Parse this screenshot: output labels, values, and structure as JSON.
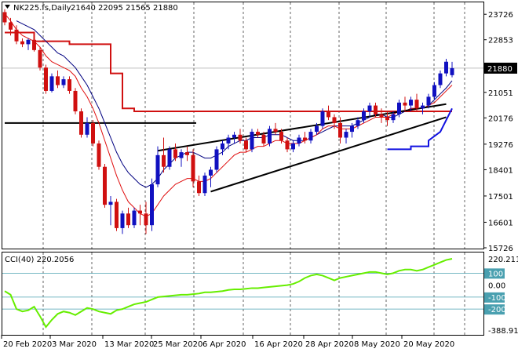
{
  "header": {
    "symbol": "NK225.fs,Daily",
    "ohlc": "21640 22095 21565 21880"
  },
  "indicator": {
    "label": "CCI(40) 220.2056"
  },
  "colors": {
    "bull": "#1010c0",
    "bear": "#d01010",
    "ma_fast": "#e01010",
    "ma_slow": "#000080",
    "stop_line": "#d01010",
    "cci_line": "#66ee00",
    "trendline": "#000000",
    "cci_levels": "#4aa0b0",
    "price_tag_bg": "#000000"
  },
  "chart_data": [
    {
      "type": "candlestick",
      "yticks": [
        15726,
        16601,
        17501,
        18401,
        19276,
        20176,
        21051,
        21880,
        22853,
        23726
      ],
      "price_tag": "21880",
      "ylim": [
        15726,
        24000
      ],
      "xlabels": [
        "20 Feb 2020",
        "3 Mar 2020",
        "13 Mar 2020",
        "25 Mar 2020",
        "6 Apr 2020",
        "16 Apr 2020",
        "28 Apr 2020",
        "8 May 2020",
        "20 May 2020"
      ],
      "candles": [
        [
          23800,
          23900,
          23350,
          23450
        ],
        [
          23450,
          23600,
          23000,
          23200
        ],
        [
          23200,
          23350,
          22700,
          22800
        ],
        [
          22800,
          22900,
          22600,
          22700
        ],
        [
          22700,
          22900,
          22500,
          22850
        ],
        [
          22850,
          22900,
          22450,
          22500
        ],
        [
          22500,
          22600,
          21800,
          21900
        ],
        [
          21900,
          22000,
          21000,
          21100
        ],
        [
          21100,
          21700,
          21050,
          21600
        ],
        [
          21600,
          21800,
          21200,
          21300
        ],
        [
          21300,
          21600,
          21200,
          21500
        ],
        [
          21500,
          21600,
          21000,
          21100
        ],
        [
          21100,
          21200,
          20300,
          20400
        ],
        [
          20400,
          20500,
          19500,
          19600
        ],
        [
          19600,
          20200,
          19500,
          20000
        ],
        [
          20000,
          20100,
          19200,
          19300
        ],
        [
          19300,
          19400,
          18400,
          18500
        ],
        [
          18500,
          18600,
          17100,
          17200
        ],
        [
          17200,
          17500,
          16500,
          17300
        ],
        [
          17300,
          17400,
          16300,
          16400
        ],
        [
          16400,
          17000,
          16200,
          16900
        ],
        [
          16900,
          17100,
          16400,
          16500
        ],
        [
          16500,
          17100,
          16400,
          17000
        ],
        [
          17000,
          17200,
          16500,
          16900
        ],
        [
          16900,
          17300,
          16200,
          16500
        ],
        [
          16500,
          18100,
          16300,
          17900
        ],
        [
          17900,
          19200,
          17800,
          18900
        ],
        [
          18900,
          19500,
          18300,
          18500
        ],
        [
          18500,
          19200,
          18400,
          19100
        ],
        [
          19100,
          19300,
          18700,
          18800
        ],
        [
          18800,
          19100,
          18500,
          19000
        ],
        [
          19000,
          19200,
          18700,
          18900
        ],
        [
          18900,
          19100,
          17800,
          18000
        ],
        [
          18000,
          18200,
          17500,
          17600
        ],
        [
          17600,
          18300,
          17500,
          18200
        ],
        [
          18200,
          18500,
          17800,
          18400
        ],
        [
          18400,
          19200,
          18300,
          19100
        ],
        [
          19100,
          19400,
          18900,
          19300
        ],
        [
          19300,
          19600,
          19100,
          19500
        ],
        [
          19500,
          19700,
          19300,
          19600
        ],
        [
          19600,
          19800,
          19300,
          19400
        ],
        [
          19400,
          19500,
          19000,
          19100
        ],
        [
          19100,
          19800,
          19000,
          19700
        ],
        [
          19700,
          19800,
          19500,
          19600
        ],
        [
          19600,
          19700,
          19200,
          19300
        ],
        [
          19300,
          19900,
          19200,
          19800
        ],
        [
          19800,
          20000,
          19600,
          19700
        ],
        [
          19700,
          19800,
          19300,
          19400
        ],
        [
          19400,
          19500,
          19000,
          19100
        ],
        [
          19100,
          19400,
          19000,
          19300
        ],
        [
          19300,
          19600,
          19200,
          19500
        ],
        [
          19500,
          19700,
          19300,
          19400
        ],
        [
          19400,
          19800,
          19300,
          19700
        ],
        [
          19700,
          20000,
          19600,
          19900
        ],
        [
          19900,
          20500,
          19800,
          20400
        ],
        [
          20400,
          20600,
          20100,
          20200
        ],
        [
          20200,
          20300,
          19800,
          20000
        ],
        [
          20000,
          20200,
          19300,
          19500
        ],
        [
          19500,
          19800,
          19300,
          19700
        ],
        [
          19700,
          20000,
          19500,
          19900
        ],
        [
          19900,
          20200,
          19800,
          20100
        ],
        [
          20100,
          20500,
          20000,
          20400
        ],
        [
          20400,
          20700,
          20200,
          20600
        ],
        [
          20600,
          20700,
          20200,
          20300
        ],
        [
          20300,
          20500,
          20000,
          20200
        ],
        [
          20200,
          20400,
          19900,
          20100
        ],
        [
          20100,
          20400,
          20000,
          20300
        ],
        [
          20300,
          20800,
          20200,
          20700
        ],
        [
          20700,
          20900,
          20400,
          20600
        ],
        [
          20600,
          20900,
          20400,
          20800
        ],
        [
          20800,
          21000,
          20400,
          20500
        ],
        [
          20500,
          20700,
          20300,
          20600
        ],
        [
          20600,
          21000,
          20500,
          20900
        ],
        [
          20900,
          21400,
          20800,
          21300
        ],
        [
          21300,
          21800,
          21200,
          21700
        ],
        [
          21700,
          22200,
          21600,
          22100
        ],
        [
          21640,
          22095,
          21565,
          21880
        ]
      ],
      "overlays": {
        "ma_fast": [
          23750,
          23500,
          23200,
          23000,
          22900,
          22800,
          22600,
          22300,
          22100,
          22000,
          21900,
          21800,
          21600,
          21200,
          20900,
          20500,
          20000,
          19400,
          18800,
          18200,
          17700,
          17300,
          17100,
          16900,
          16800,
          16900,
          17200,
          17500,
          17700,
          17900,
          18000,
          18100,
          18100,
          18000,
          18000,
          18100,
          18300,
          18500,
          18700,
          18900,
          19000,
          19000,
          19100,
          19200,
          19200,
          19300,
          19400,
          19400,
          19300,
          19300,
          19300,
          19400,
          19500,
          19600,
          19800,
          19900,
          19900,
          19800,
          19800,
          19800,
          19900,
          20000,
          20100,
          20200,
          20200,
          20200,
          20300,
          20400,
          20400,
          20500,
          20500,
          20500,
          20600,
          20700,
          20900,
          21100,
          21300
        ],
        "ma_slow": [
          null,
          null,
          23500,
          23400,
          23300,
          23200,
          23000,
          22800,
          22600,
          22400,
          22300,
          22100,
          21900,
          21600,
          21300,
          20900,
          20500,
          20000,
          19500,
          19000,
          18600,
          18300,
          18100,
          17900,
          17800,
          17900,
          18100,
          18400,
          18600,
          18800,
          18900,
          19000,
          19000,
          18900,
          18800,
          18800,
          18900,
          19000,
          19200,
          19300,
          19400,
          19400,
          19500,
          19500,
          19500,
          19600,
          19600,
          19600,
          19500,
          19400,
          19400,
          19400,
          19500,
          19600,
          19700,
          19800,
          19900,
          19900,
          19900,
          19900,
          20000,
          20100,
          20200,
          20300,
          20300,
          20200,
          20200,
          20300,
          20400,
          20500,
          20500,
          20500,
          20600,
          20800,
          21000,
          21200,
          21450
        ],
        "stop_line": [
          [
            0,
            23100
          ],
          [
            5,
            23100
          ],
          [
            5,
            22800
          ],
          [
            11,
            22800
          ],
          [
            11,
            22700
          ],
          [
            18,
            22700
          ],
          [
            18,
            21700
          ],
          [
            20,
            21700
          ],
          [
            20,
            20500
          ],
          [
            22,
            20500
          ],
          [
            22,
            20400
          ],
          [
            40,
            20400
          ],
          [
            76,
            20400
          ]
        ],
        "stop_line_2": [
          [
            65,
            19100
          ],
          [
            69,
            19100
          ],
          [
            69,
            19200
          ],
          [
            72,
            19200
          ],
          [
            72,
            19400
          ],
          [
            74,
            19700
          ],
          [
            76,
            20500
          ]
        ],
        "support_line": [
          0,
          20000,
          38,
          20000
        ],
        "trend_upper": [
          26,
          19050,
          75,
          20650
        ],
        "trend_lower": [
          35,
          17650,
          75,
          20200
        ]
      }
    },
    {
      "type": "line",
      "name": "CCI(40)",
      "yticks_labels": [
        "220.2115",
        "100",
        "0.00",
        "-100",
        "-200",
        "-388.918"
      ],
      "levels": [
        100,
        -100,
        -200
      ],
      "ylim": [
        -388.918,
        220.2115
      ],
      "values": [
        -50,
        -80,
        -200,
        -220,
        -210,
        -180,
        -260,
        -350,
        -290,
        -240,
        -220,
        -230,
        -250,
        -220,
        -190,
        -200,
        -220,
        -230,
        -240,
        -210,
        -200,
        -180,
        -160,
        -150,
        -140,
        -120,
        -100,
        -95,
        -90,
        -85,
        -80,
        -80,
        -75,
        -70,
        -60,
        -60,
        -55,
        -50,
        -40,
        -35,
        -35,
        -30,
        -25,
        -25,
        -20,
        -15,
        -10,
        -5,
        0,
        10,
        30,
        60,
        80,
        90,
        80,
        60,
        40,
        60,
        70,
        80,
        90,
        100,
        110,
        110,
        100,
        90,
        100,
        120,
        130,
        130,
        120,
        130,
        150,
        170,
        190,
        210,
        220
      ]
    }
  ]
}
